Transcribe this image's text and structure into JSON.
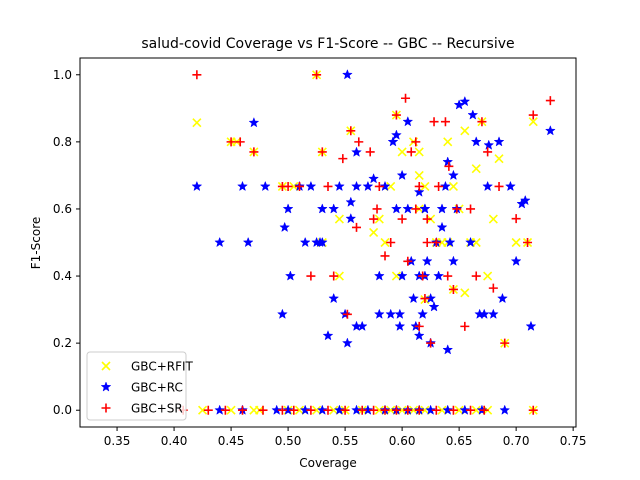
{
  "chart_data": {
    "type": "scatter",
    "title": "salud-covid Coverage vs F1-Score -- GBC -- Recursive",
    "xlabel": "Coverage",
    "ylabel": "F1-Score",
    "xlim": [
      0.3175,
      0.7525
    ],
    "ylim": [
      -0.05,
      1.05
    ],
    "xticks": [
      "0.35",
      "0.40",
      "0.45",
      "0.50",
      "0.55",
      "0.60",
      "0.65",
      "0.70",
      "0.75"
    ],
    "yticks": [
      "0.0",
      "0.2",
      "0.4",
      "0.6",
      "0.8",
      "1.0"
    ],
    "legend_position": "lower-left",
    "grid": false,
    "series": [
      {
        "name": "GBC+RFIT",
        "marker": "x",
        "color": "#ffff00",
        "points": [
          [
            0.42,
            0.857
          ],
          [
            0.45,
            0.8
          ],
          [
            0.455,
            0.8
          ],
          [
            0.47,
            0.77
          ],
          [
            0.495,
            0.667
          ],
          [
            0.505,
            0.667
          ],
          [
            0.525,
            1.0
          ],
          [
            0.53,
            0.77
          ],
          [
            0.545,
            0.57
          ],
          [
            0.555,
            0.833
          ],
          [
            0.575,
            0.53
          ],
          [
            0.58,
            0.57
          ],
          [
            0.59,
            0.667
          ],
          [
            0.595,
            0.88
          ],
          [
            0.6,
            0.77
          ],
          [
            0.61,
            0.8
          ],
          [
            0.615,
            0.7
          ],
          [
            0.615,
            0.77
          ],
          [
            0.62,
            0.667
          ],
          [
            0.625,
            0.57
          ],
          [
            0.63,
            0.5
          ],
          [
            0.635,
            0.5
          ],
          [
            0.64,
            0.8
          ],
          [
            0.645,
            0.667
          ],
          [
            0.65,
            0.6
          ],
          [
            0.655,
            0.833
          ],
          [
            0.66,
            0.5
          ],
          [
            0.665,
            0.72
          ],
          [
            0.67,
            0.86
          ],
          [
            0.675,
            0.4
          ],
          [
            0.68,
            0.57
          ],
          [
            0.685,
            0.75
          ],
          [
            0.69,
            0.2
          ],
          [
            0.7,
            0.5
          ],
          [
            0.71,
            0.5
          ],
          [
            0.715,
            0.86
          ],
          [
            0.595,
            0.4
          ],
          [
            0.62,
            0.33
          ],
          [
            0.655,
            0.35
          ],
          [
            0.615,
            0.6
          ],
          [
            0.64,
            0.5
          ],
          [
            0.665,
            0.5
          ],
          [
            0.645,
            0.36
          ],
          [
            0.545,
            0.4
          ],
          [
            0.53,
            0.5
          ],
          [
            0.585,
            0.5
          ],
          [
            0.425,
            0.0
          ],
          [
            0.45,
            0.0
          ],
          [
            0.47,
            0.0
          ],
          [
            0.475,
            0.0
          ],
          [
            0.5,
            0.0
          ],
          [
            0.51,
            0.0
          ],
          [
            0.525,
            0.0
          ],
          [
            0.54,
            0.0
          ],
          [
            0.55,
            0.0
          ],
          [
            0.565,
            0.0
          ],
          [
            0.58,
            0.0
          ],
          [
            0.59,
            0.0
          ],
          [
            0.6,
            0.0
          ],
          [
            0.61,
            0.0
          ],
          [
            0.62,
            0.0
          ],
          [
            0.635,
            0.0
          ],
          [
            0.65,
            0.0
          ],
          [
            0.665,
            0.0
          ],
          [
            0.675,
            0.0
          ],
          [
            0.715,
            0.0
          ]
        ]
      },
      {
        "name": "GBC+RC",
        "marker": "*",
        "color": "#0000ff",
        "points": [
          [
            0.42,
            0.667
          ],
          [
            0.44,
            0.5
          ],
          [
            0.46,
            0.667
          ],
          [
            0.465,
            0.5
          ],
          [
            0.47,
            0.857
          ],
          [
            0.48,
            0.667
          ],
          [
            0.495,
            0.286
          ],
          [
            0.497,
            0.545
          ],
          [
            0.5,
            0.6
          ],
          [
            0.502,
            0.4
          ],
          [
            0.51,
            0.667
          ],
          [
            0.515,
            0.5
          ],
          [
            0.52,
            0.667
          ],
          [
            0.525,
            0.5
          ],
          [
            0.528,
            0.5
          ],
          [
            0.53,
            0.5
          ],
          [
            0.53,
            0.6
          ],
          [
            0.535,
            0.222
          ],
          [
            0.54,
            0.333
          ],
          [
            0.54,
            0.6
          ],
          [
            0.545,
            0.667
          ],
          [
            0.55,
            0.286
          ],
          [
            0.552,
            0.2
          ],
          [
            0.555,
            0.571
          ],
          [
            0.555,
            0.62
          ],
          [
            0.56,
            0.25
          ],
          [
            0.56,
            0.667
          ],
          [
            0.565,
            0.25
          ],
          [
            0.552,
            1.0
          ],
          [
            0.56,
            0.769
          ],
          [
            0.57,
            0.667
          ],
          [
            0.575,
            0.69
          ],
          [
            0.58,
            0.286
          ],
          [
            0.58,
            0.4
          ],
          [
            0.585,
            0.667
          ],
          [
            0.59,
            0.286
          ],
          [
            0.592,
            0.8
          ],
          [
            0.595,
            0.6
          ],
          [
            0.595,
            0.82
          ],
          [
            0.598,
            0.286
          ],
          [
            0.598,
            0.25
          ],
          [
            0.6,
            0.4
          ],
          [
            0.605,
            0.86
          ],
          [
            0.605,
            0.6
          ],
          [
            0.608,
            0.444
          ],
          [
            0.61,
            0.333
          ],
          [
            0.612,
            0.25
          ],
          [
            0.615,
            0.222
          ],
          [
            0.615,
            0.4
          ],
          [
            0.618,
            0.286
          ],
          [
            0.62,
            0.4
          ],
          [
            0.62,
            0.6
          ],
          [
            0.622,
            0.444
          ],
          [
            0.625,
            0.2
          ],
          [
            0.625,
            0.333
          ],
          [
            0.628,
            0.308
          ],
          [
            0.63,
            0.5
          ],
          [
            0.632,
            0.4
          ],
          [
            0.635,
            0.545
          ],
          [
            0.638,
            0.667
          ],
          [
            0.64,
            0.18
          ],
          [
            0.64,
            0.74
          ],
          [
            0.642,
            0.5
          ],
          [
            0.645,
            0.444
          ],
          [
            0.648,
            0.6
          ],
          [
            0.65,
            0.91
          ],
          [
            0.655,
            0.92
          ],
          [
            0.66,
            0.5
          ],
          [
            0.662,
            0.88
          ],
          [
            0.665,
            0.8
          ],
          [
            0.668,
            0.286
          ],
          [
            0.672,
            0.286
          ],
          [
            0.675,
            0.667
          ],
          [
            0.676,
            0.79
          ],
          [
            0.68,
            0.286
          ],
          [
            0.685,
            0.8
          ],
          [
            0.688,
            0.333
          ],
          [
            0.695,
            0.667
          ],
          [
            0.7,
            0.444
          ],
          [
            0.705,
            0.615
          ],
          [
            0.708,
            0.625
          ],
          [
            0.713,
            0.25
          ],
          [
            0.73,
            0.833
          ],
          [
            0.62,
            0.6
          ],
          [
            0.615,
            0.65
          ],
          [
            0.6,
            0.7
          ],
          [
            0.635,
            0.6
          ],
          [
            0.645,
            0.7
          ],
          [
            0.44,
            0.0
          ],
          [
            0.46,
            0.0
          ],
          [
            0.49,
            0.0
          ],
          [
            0.5,
            0.0
          ],
          [
            0.515,
            0.0
          ],
          [
            0.53,
            0.0
          ],
          [
            0.545,
            0.0
          ],
          [
            0.56,
            0.0
          ],
          [
            0.57,
            0.0
          ],
          [
            0.585,
            0.0
          ],
          [
            0.595,
            0.0
          ],
          [
            0.605,
            0.0
          ],
          [
            0.615,
            0.0
          ],
          [
            0.625,
            0.0
          ],
          [
            0.64,
            0.0
          ],
          [
            0.655,
            0.0
          ],
          [
            0.67,
            0.0
          ],
          [
            0.69,
            0.0
          ]
        ]
      },
      {
        "name": "GBC+SR",
        "marker": "+",
        "color": "#ff0000",
        "points": [
          [
            0.42,
            1.0
          ],
          [
            0.45,
            0.8
          ],
          [
            0.458,
            0.8
          ],
          [
            0.47,
            0.77
          ],
          [
            0.495,
            0.667
          ],
          [
            0.5,
            0.667
          ],
          [
            0.51,
            0.667
          ],
          [
            0.52,
            0.4
          ],
          [
            0.525,
            1.0
          ],
          [
            0.53,
            0.77
          ],
          [
            0.535,
            0.667
          ],
          [
            0.54,
            0.4
          ],
          [
            0.548,
            0.75
          ],
          [
            0.552,
            0.286
          ],
          [
            0.555,
            0.833
          ],
          [
            0.56,
            0.545
          ],
          [
            0.562,
            0.8
          ],
          [
            0.572,
            0.77
          ],
          [
            0.575,
            0.57
          ],
          [
            0.578,
            0.6
          ],
          [
            0.58,
            0.667
          ],
          [
            0.585,
            0.46
          ],
          [
            0.59,
            0.5
          ],
          [
            0.595,
            0.88
          ],
          [
            0.6,
            0.57
          ],
          [
            0.603,
            0.93
          ],
          [
            0.605,
            0.444
          ],
          [
            0.608,
            0.77
          ],
          [
            0.612,
            0.8
          ],
          [
            0.615,
            0.25
          ],
          [
            0.615,
            0.667
          ],
          [
            0.618,
            0.4
          ],
          [
            0.62,
            0.333
          ],
          [
            0.622,
            0.57
          ],
          [
            0.625,
            0.2
          ],
          [
            0.628,
            0.86
          ],
          [
            0.63,
            0.5
          ],
          [
            0.632,
            0.667
          ],
          [
            0.638,
            0.86
          ],
          [
            0.64,
            0.4
          ],
          [
            0.645,
            0.36
          ],
          [
            0.648,
            0.6
          ],
          [
            0.655,
            0.25
          ],
          [
            0.66,
            0.6
          ],
          [
            0.665,
            0.4
          ],
          [
            0.67,
            0.86
          ],
          [
            0.675,
            0.77
          ],
          [
            0.68,
            0.364
          ],
          [
            0.685,
            0.667
          ],
          [
            0.69,
            0.2
          ],
          [
            0.7,
            0.571
          ],
          [
            0.71,
            0.5
          ],
          [
            0.715,
            0.88
          ],
          [
            0.73,
            0.923
          ],
          [
            0.612,
            0.6
          ],
          [
            0.622,
            0.5
          ],
          [
            0.641,
            0.727
          ],
          [
            0.408,
            0.0
          ],
          [
            0.43,
            0.0
          ],
          [
            0.445,
            0.0
          ],
          [
            0.46,
            0.0
          ],
          [
            0.478,
            0.0
          ],
          [
            0.495,
            0.0
          ],
          [
            0.505,
            0.0
          ],
          [
            0.52,
            0.0
          ],
          [
            0.535,
            0.0
          ],
          [
            0.55,
            0.0
          ],
          [
            0.565,
            0.0
          ],
          [
            0.575,
            0.0
          ],
          [
            0.585,
            0.0
          ],
          [
            0.595,
            0.0
          ],
          [
            0.605,
            0.0
          ],
          [
            0.615,
            0.0
          ],
          [
            0.63,
            0.0
          ],
          [
            0.645,
            0.0
          ],
          [
            0.66,
            0.0
          ],
          [
            0.672,
            0.0
          ],
          [
            0.715,
            0.0
          ]
        ]
      }
    ]
  }
}
